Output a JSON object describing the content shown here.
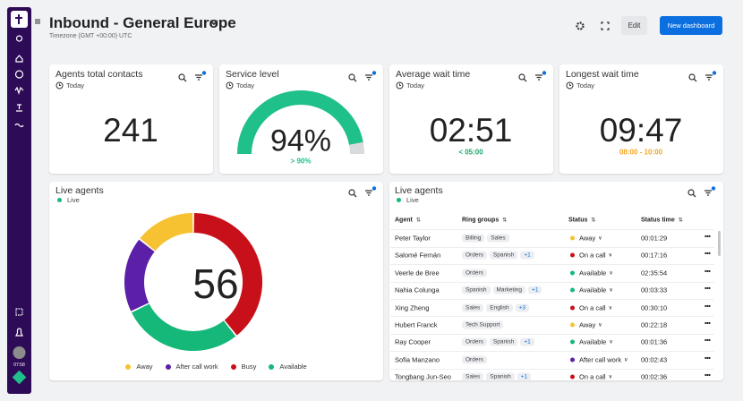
{
  "sidebar": {
    "clock": "07:58"
  },
  "header": {
    "title": "Inbound - General Europe",
    "subtitle": "Timezone (GMT +00:00) UTC",
    "edit_button": "Edit",
    "new_dashboard_button": "New dashboard"
  },
  "widgets": [
    {
      "title": "Agents total contacts",
      "period": "Today",
      "value": 241
    },
    {
      "title": "Service level",
      "period": "Today",
      "value": 94,
      "value_label": "94%",
      "target": "> 90%",
      "color": "#1fc08a"
    },
    {
      "title": "Average wait time",
      "period": "Today",
      "value": "02:51",
      "target": "< 05:00",
      "target_color": "#1fa86b"
    },
    {
      "title": "Longest wait time",
      "period": "Today",
      "value": "09:47",
      "target": "08:00 - 10:00",
      "target_color": "#f5a623"
    }
  ],
  "live_agents_chart": {
    "title": "Live agents",
    "status": "Live",
    "total": 56,
    "segments": [
      {
        "name": "Away",
        "color": "#f7c232",
        "value": 8
      },
      {
        "name": "After call work",
        "color": "#5b1fa8",
        "value": 10
      },
      {
        "name": "Busy",
        "color": "#c8101a",
        "value": 22
      },
      {
        "name": "Available",
        "color": "#16b87a",
        "value": 16
      }
    ]
  },
  "live_agents_table": {
    "title": "Live agents",
    "status": "Live",
    "columns": [
      "Agent",
      "Ring groups",
      "Status",
      "Status time"
    ],
    "rows": [
      {
        "agent": "Peter Taylor",
        "ring_groups": [
          "Billing",
          "Sales"
        ],
        "status": "Away",
        "status_color": "#f7c232",
        "status_time": "00:01:29"
      },
      {
        "agent": "Salomé Fernán",
        "ring_groups": [
          "Orders",
          "Spanish",
          "+1"
        ],
        "status": "On a call",
        "status_color": "#c8101a",
        "status_time": "00:17:16"
      },
      {
        "agent": "Veerle de Bree",
        "ring_groups": [
          "Orders"
        ],
        "status": "Available",
        "status_color": "#16b87a",
        "status_time": "02:35:54"
      },
      {
        "agent": "Nahia Colunga",
        "ring_groups": [
          "Spanish",
          "Marketing",
          "+1"
        ],
        "status": "Available",
        "status_color": "#16b87a",
        "status_time": "00:03:33"
      },
      {
        "agent": "Xing Zheng",
        "ring_groups": [
          "Sales",
          "English",
          "+3"
        ],
        "status": "On a call",
        "status_color": "#c8101a",
        "status_time": "00:30:10"
      },
      {
        "agent": "Hubert Franck",
        "ring_groups": [
          "Tech Support"
        ],
        "status": "Away",
        "status_color": "#f7c232",
        "status_time": "00:22:18"
      },
      {
        "agent": "Ray Cooper",
        "ring_groups": [
          "Orders",
          "Spanish",
          "+1"
        ],
        "status": "Available",
        "status_color": "#16b87a",
        "status_time": "00:01:36"
      },
      {
        "agent": "Sofia Manzano",
        "ring_groups": [
          "Orders"
        ],
        "status": "After call work",
        "status_color": "#5b1fa8",
        "status_time": "00:02:43"
      },
      {
        "agent": "Tongbang Jun-Seo",
        "ring_groups": [
          "Sales",
          "Spanish",
          "+1"
        ],
        "status": "On a call",
        "status_color": "#c8101a",
        "status_time": "00:02:36"
      }
    ]
  }
}
